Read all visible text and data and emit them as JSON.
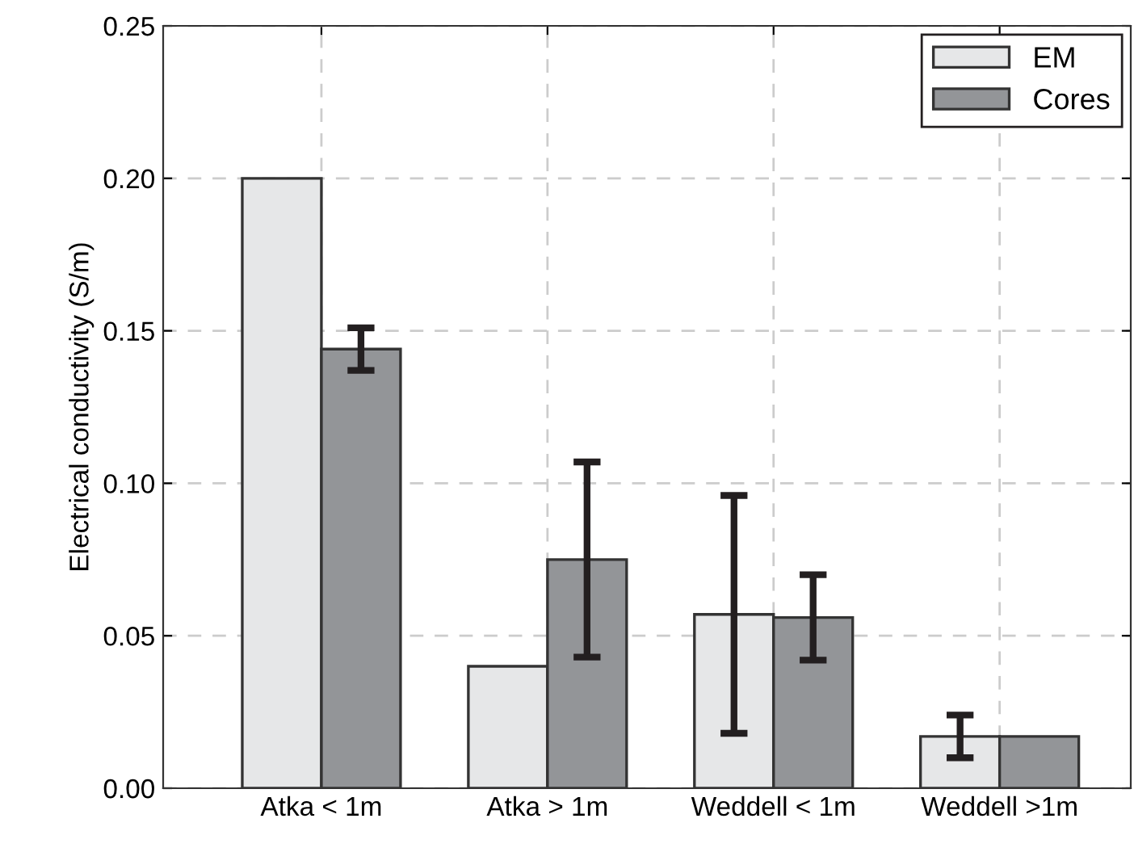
{
  "chart_data": {
    "type": "bar",
    "ylabel": "Electrical conductivity (S/m)",
    "categories": [
      "Atka < 1m",
      "Atka > 1m",
      "Weddell < 1m",
      "Weddell >1m"
    ],
    "series": [
      {
        "name": "EM",
        "color": "#e6e7e8",
        "values": [
          0.2,
          0.04,
          0.057,
          0.017
        ],
        "errors": [
          null,
          null,
          0.039,
          0.007
        ]
      },
      {
        "name": "Cores",
        "color": "#939598",
        "values": [
          0.144,
          0.075,
          0.056,
          0.017
        ],
        "errors": [
          0.007,
          0.032,
          0.014,
          null
        ]
      }
    ],
    "ylim": [
      0,
      0.25
    ],
    "yticks": [
      {
        "value": 0,
        "label": "0.00"
      },
      0.05,
      {
        "value": 0.1,
        "label": "0.10"
      },
      0.15,
      {
        "value": 0.2,
        "label": "0.20"
      },
      0.25
    ],
    "grid": true,
    "legend": "top right"
  }
}
